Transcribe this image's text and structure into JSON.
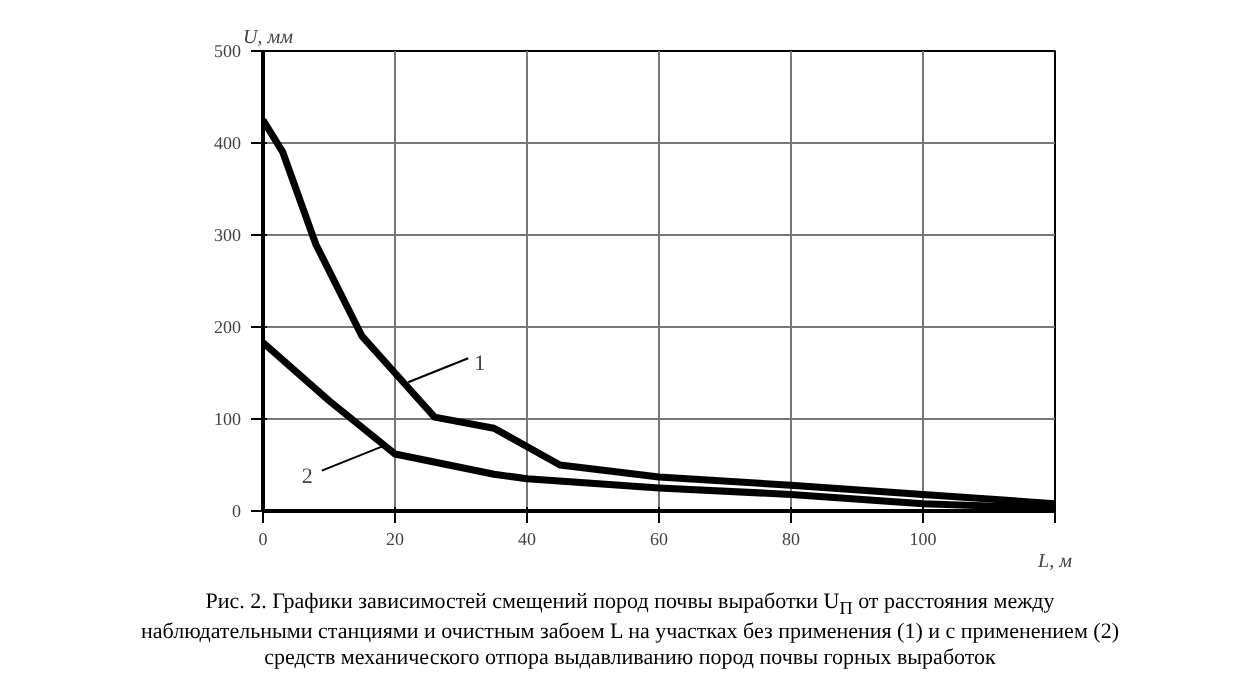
{
  "chart_data": {
    "type": "line",
    "xlabel": "L, м",
    "ylabel": "U, мм",
    "xlim": [
      0,
      120
    ],
    "ylim": [
      0,
      500
    ],
    "xticks": [
      0,
      20,
      40,
      60,
      80,
      100,
      {
        "value": 120,
        "label": null
      }
    ],
    "yticks": [
      0,
      100,
      200,
      300,
      400,
      500
    ],
    "grid": true,
    "marker": "none",
    "line_style": "solid",
    "series": [
      {
        "color": "#000000",
        "x": [
          0,
          3,
          8,
          15,
          20,
          26,
          35,
          45,
          60,
          80,
          100,
          120
        ],
        "values": [
          425,
          390,
          290,
          190,
          150,
          102,
          90,
          50,
          37,
          28,
          18,
          8
        ]
      },
      {
        "color": "#000000",
        "x": [
          0,
          10,
          20,
          35,
          40,
          60,
          80,
          100,
          120
        ],
        "values": [
          183,
          120,
          62,
          40,
          35,
          25,
          18,
          8,
          3
        ]
      }
    ],
    "annotations": [
      {
        "text": "1",
        "x": 22,
        "y": 140
      },
      {
        "text": "2",
        "x": 18,
        "y": 70
      },
      "Рис. 2. Графики зависимостей смещений пород почвы выработки U$_{П}$ от расстояния между наблюдательными станциями и очистным забоем L на участках без применения (1) и с применением (2) средств механического отпора выдавливанию пород почвы горных выработок"
    ]
  }
}
